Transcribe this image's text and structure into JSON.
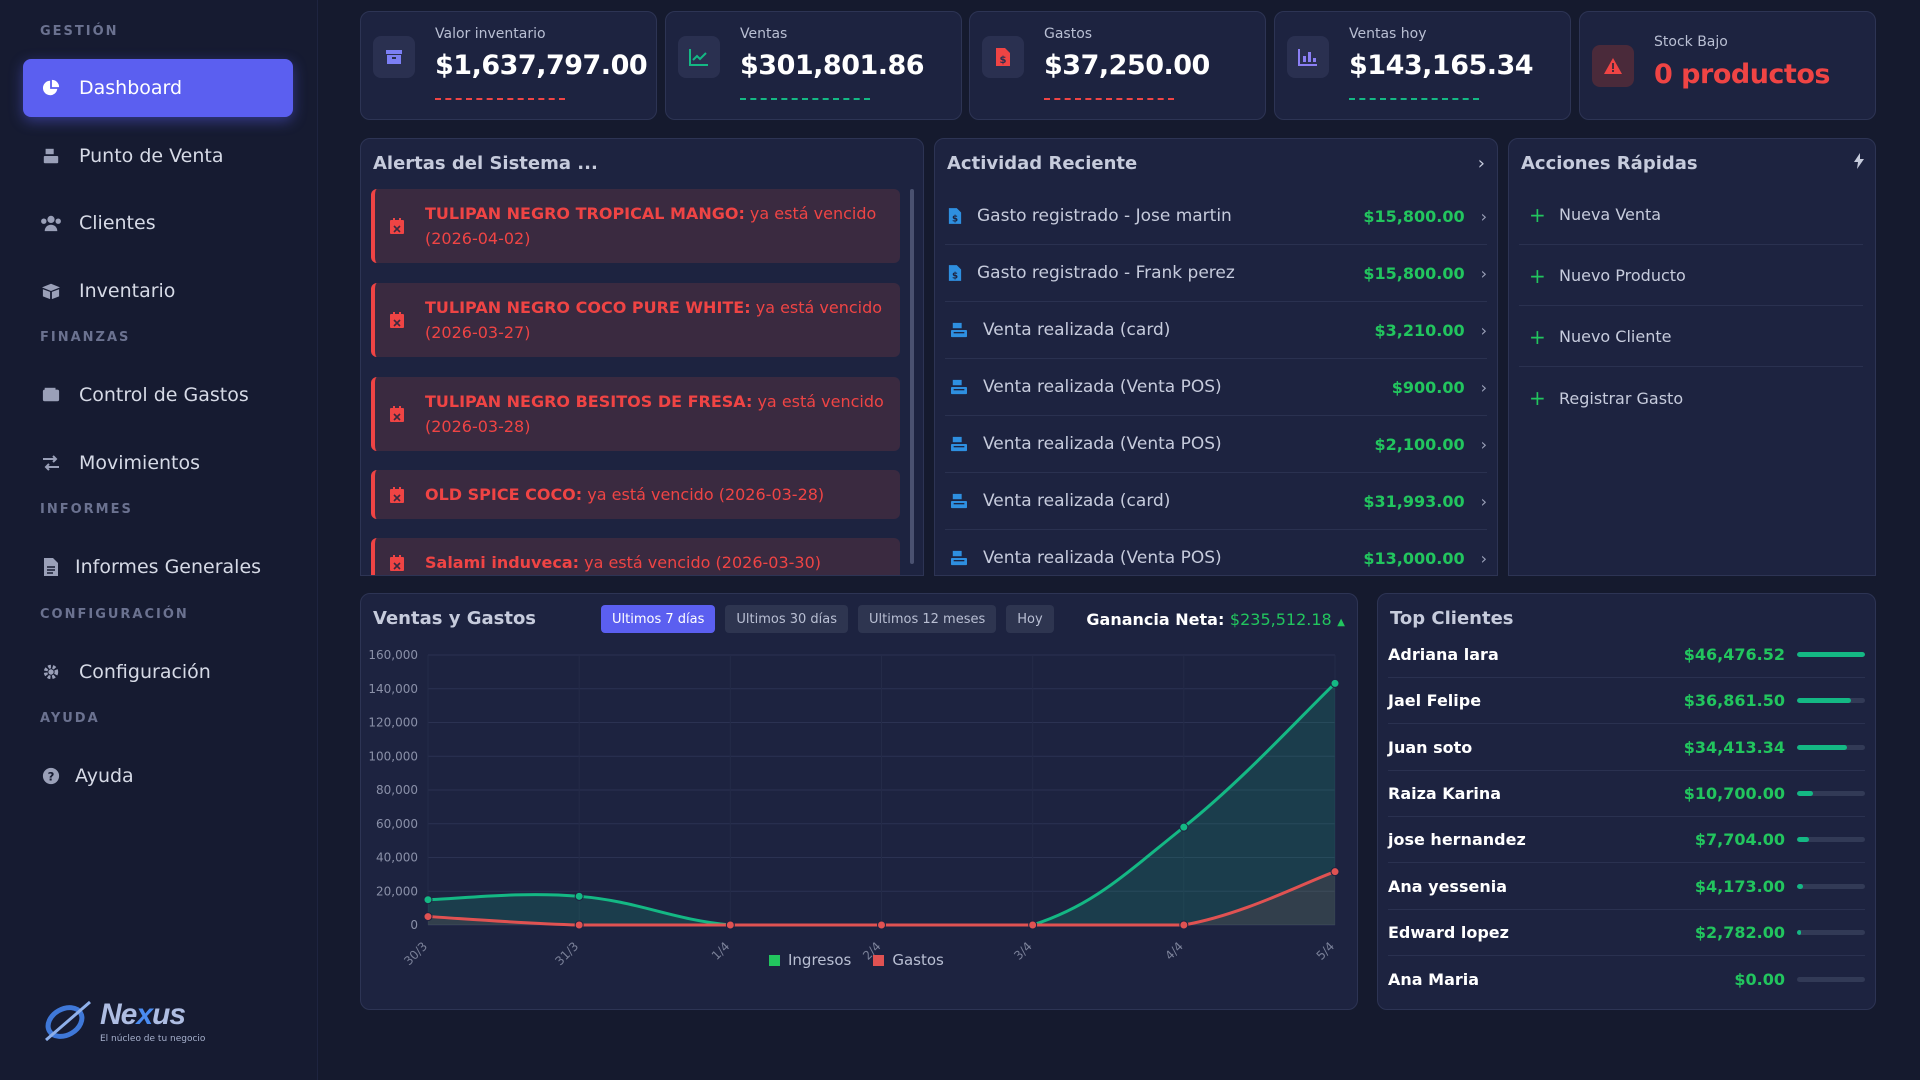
{
  "sidebar": {
    "sections": {
      "gestion": "GESTIÓN",
      "finanzas": "FINANZAS",
      "informes": "INFORMES",
      "configuracion": "CONFIGURACIÓN",
      "ayuda": "AYUDA"
    },
    "items": [
      {
        "label": "Dashboard",
        "icon": "chart-pie-icon"
      },
      {
        "label": "Punto de Venta",
        "icon": "cash-register-icon"
      },
      {
        "label": "Clientes",
        "icon": "users-icon"
      },
      {
        "label": "Inventario",
        "icon": "boxes-icon"
      },
      {
        "label": "Control de Gastos",
        "icon": "wallet-icon"
      },
      {
        "label": "Movimientos",
        "icon": "exchange-icon"
      },
      {
        "label": "Informes Generales",
        "icon": "file-icon"
      },
      {
        "label": "Configuración",
        "icon": "gear-icon"
      },
      {
        "label": "Ayuda",
        "icon": "question-icon"
      }
    ],
    "logo": {
      "text_a": "Ne",
      "text_x": "x",
      "text_b": "us",
      "tagline": "El núcleo de tu negocio"
    }
  },
  "stats": [
    {
      "label": "Valor inventario",
      "value": "$1,637,797.00",
      "color": "#ef4444",
      "icon": "box-icon"
    },
    {
      "label": "Ventas",
      "value": "$301,801.86",
      "color": "#14b884",
      "icon": "trend-up-icon"
    },
    {
      "label": "Gastos",
      "value": "$37,250.00",
      "color": "#ef4444",
      "icon": "invoice-dollar-icon"
    },
    {
      "label": "Ventas hoy",
      "value": "$143,165.34",
      "color": "#14b884",
      "icon": "bar-chart-icon"
    },
    {
      "label": "Stock Bajo",
      "value": "0 productos",
      "color": "#ef4444",
      "icon": "warning-icon"
    }
  ],
  "alerts": {
    "title": "Alertas del Sistema ...",
    "items": [
      {
        "name": "TULIPAN NEGRO TROPICAL MANGO:",
        "text": " ya está vencido (2026-04-02)"
      },
      {
        "name": "TULIPAN NEGRO COCO PURE WHITE:",
        "text": " ya está vencido (2026-03-27)"
      },
      {
        "name": "TULIPAN NEGRO BESITOS DE FRESA:",
        "text": " ya está vencido (2026-03-28)"
      },
      {
        "name": "OLD SPICE COCO:",
        "text": " ya está vencido (2026-03-28)"
      },
      {
        "name": "Salami induveca:",
        "text": " ya está vencido (2026-03-30)"
      }
    ]
  },
  "activity": {
    "title": "Actividad Reciente",
    "items": [
      {
        "type": "expense",
        "label": "Gasto registrado - Jose martin",
        "amount": "$15,800.00"
      },
      {
        "type": "expense",
        "label": "Gasto registrado - Frank perez",
        "amount": "$15,800.00"
      },
      {
        "type": "sale",
        "label": "Venta realizada (card)",
        "amount": "$3,210.00"
      },
      {
        "type": "sale",
        "label": "Venta realizada (Venta POS)",
        "amount": "$900.00"
      },
      {
        "type": "sale",
        "label": "Venta realizada (Venta POS)",
        "amount": "$2,100.00"
      },
      {
        "type": "sale",
        "label": "Venta realizada (card)",
        "amount": "$31,993.00"
      },
      {
        "type": "sale",
        "label": "Venta realizada (Venta POS)",
        "amount": "$13,000.00"
      }
    ]
  },
  "quick_actions": {
    "title": "Acciones Rápidas",
    "items": [
      "Nueva Venta",
      "Nuevo Producto",
      "Nuevo Cliente",
      "Registrar Gasto"
    ]
  },
  "sales_chart": {
    "title": "Ventas y Gastos",
    "tabs": [
      "Ultimos 7 días",
      "Ultimos 30 días",
      "Ultimos 12 meses",
      "Hoy"
    ],
    "active_tab": "Ultimos 7 días",
    "ganancia_label": "Ganancia Neta:",
    "ganancia_value": "$235,512.18",
    "colors": {
      "ingresos": "#14b884",
      "gastos": "#e05252"
    }
  },
  "chart_data": {
    "type": "line",
    "title": "Ventas y Gastos",
    "categories": [
      "30/3",
      "31/3",
      "1/4",
      "2/4",
      "3/4",
      "4/4",
      "5/4"
    ],
    "y_ticks": [
      "0",
      "20,000",
      "40,000",
      "60,000",
      "80,000",
      "100,000",
      "120,000",
      "140,000",
      "160,000"
    ],
    "ylim": [
      0,
      160000
    ],
    "grid": true,
    "legend_position": "bottom",
    "series": [
      {
        "name": "Ingresos",
        "values": [
          15000,
          17000,
          0,
          0,
          0,
          58000,
          143165
        ]
      },
      {
        "name": "Gastos",
        "values": [
          5000,
          0,
          0,
          0,
          0,
          0,
          31600
        ]
      }
    ]
  },
  "top_clients": {
    "title": "Top Clientes",
    "items": [
      {
        "name": "Adriana lara",
        "value": "$46,476.52",
        "pct": 100
      },
      {
        "name": "Jael Felipe",
        "value": "$36,861.50",
        "pct": 79
      },
      {
        "name": "Juan soto",
        "value": "$34,413.34",
        "pct": 74
      },
      {
        "name": "Raiza Karina",
        "value": "$10,700.00",
        "pct": 23
      },
      {
        "name": "jose hernandez",
        "value": "$7,704.00",
        "pct": 17
      },
      {
        "name": "Ana yessenia",
        "value": "$4,173.00",
        "pct": 9
      },
      {
        "name": "Edward lopez",
        "value": "$2,782.00",
        "pct": 6
      },
      {
        "name": "Ana Maria",
        "value": "$0.00",
        "pct": 0
      }
    ]
  }
}
